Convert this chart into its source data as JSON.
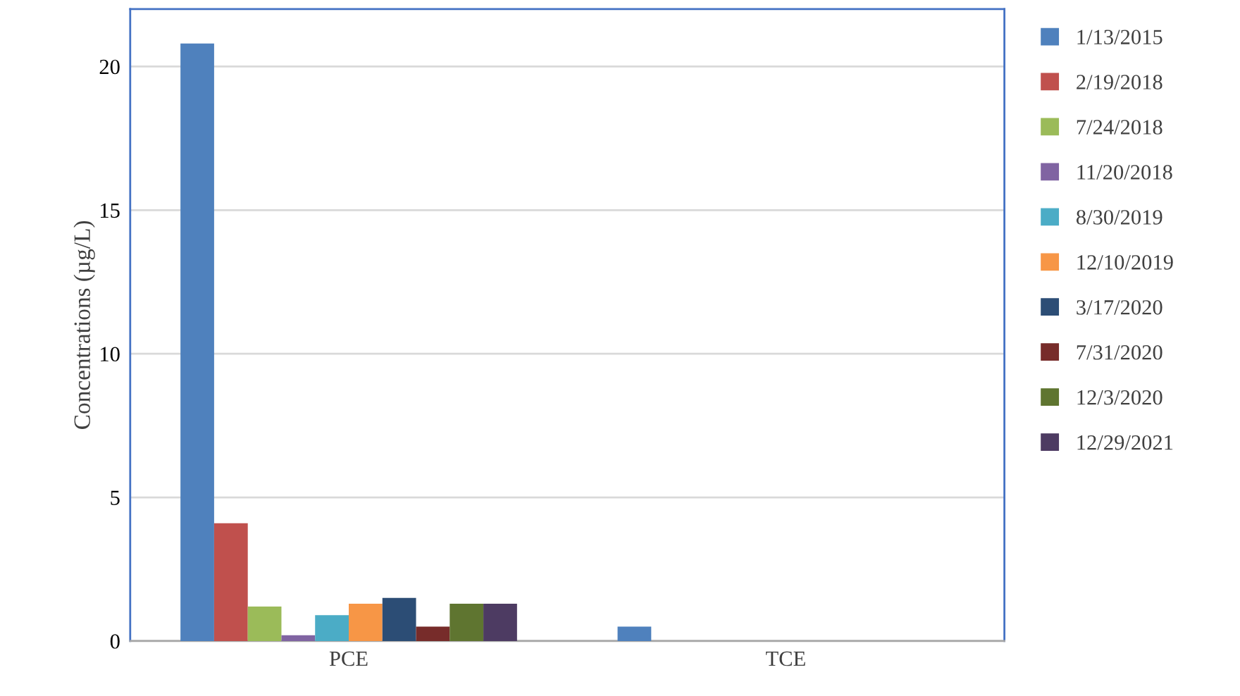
{
  "chart_data": {
    "type": "bar",
    "ylabel": "Concentrations (µg/L)",
    "categories": [
      "PCE",
      "TCE"
    ],
    "series": [
      {
        "name": "1/13/2015",
        "color": "#4f81bd",
        "values": [
          20.8,
          0.5
        ]
      },
      {
        "name": "2/19/2018",
        "color": "#c0504d",
        "values": [
          4.1,
          0
        ]
      },
      {
        "name": "7/24/2018",
        "color": "#9bbb59",
        "values": [
          1.2,
          0
        ]
      },
      {
        "name": "11/20/2018",
        "color": "#8064a2",
        "values": [
          0.2,
          0
        ]
      },
      {
        "name": "8/30/2019",
        "color": "#4bacc6",
        "values": [
          0.9,
          0
        ]
      },
      {
        "name": "12/10/2019",
        "color": "#f79646",
        "values": [
          1.3,
          0
        ]
      },
      {
        "name": "3/17/2020",
        "color": "#2c4d75",
        "values": [
          1.5,
          0
        ]
      },
      {
        "name": "7/31/2020",
        "color": "#772c2a",
        "values": [
          0.5,
          0
        ]
      },
      {
        "name": "12/3/2020",
        "color": "#5f7530",
        "values": [
          1.3,
          0
        ]
      },
      {
        "name": "12/29/2021",
        "color": "#4d3b62",
        "values": [
          1.3,
          0
        ]
      }
    ],
    "ylim": [
      0,
      22
    ],
    "yticks": [
      0,
      5,
      10,
      15,
      20
    ],
    "grid": "y",
    "legend": "right"
  }
}
